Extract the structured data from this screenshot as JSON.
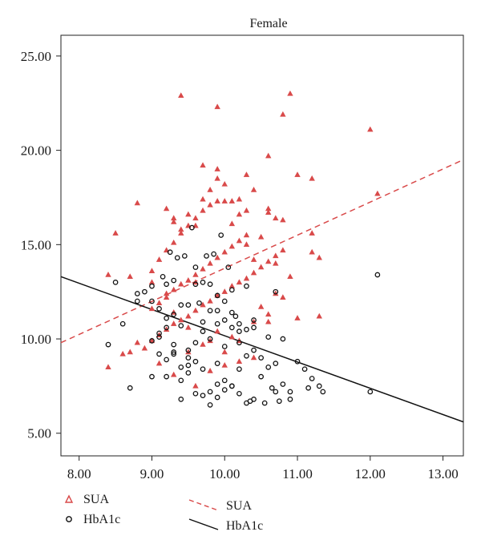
{
  "chart_data": {
    "type": "scatter",
    "title": "Female",
    "xlabel": "",
    "ylabel": "",
    "xlim": [
      7.75,
      13.28
    ],
    "ylim": [
      3.8,
      26.1
    ],
    "xticks": [
      "8.00",
      "9.00",
      "10.00",
      "11.00",
      "12.00",
      "13.00"
    ],
    "yticks": [
      "5.00",
      "10.00",
      "15.00",
      "20.00",
      "25.00"
    ],
    "grid": false,
    "legend_position": "bottom",
    "colors": {
      "sua": "#d94a4a",
      "hba1c": "#111111"
    },
    "fit_lines": [
      {
        "name": "SUA",
        "style": "dashed",
        "x": [
          7.75,
          13.28
        ],
        "y": [
          9.8,
          19.5
        ]
      },
      {
        "name": "HbA1c",
        "style": "solid",
        "x": [
          7.75,
          13.28
        ],
        "y": [
          13.3,
          5.6
        ]
      }
    ],
    "series": [
      {
        "name": "SUA",
        "marker": "triangle",
        "x": [
          8.4,
          8.6,
          8.7,
          8.8,
          8.9,
          9.0,
          9.1,
          9.2,
          9.3,
          9.4,
          9.5,
          9.6,
          9.7,
          9.8,
          9.9,
          10.0,
          10.1,
          10.2,
          10.3,
          10.4,
          10.5,
          10.6,
          10.7,
          10.8,
          10.9,
          11.0,
          11.2,
          11.3,
          9.0,
          9.1,
          9.2,
          9.3,
          9.4,
          9.5,
          9.6,
          9.7,
          9.8,
          9.9,
          10.0,
          10.1,
          10.2,
          10.3,
          10.4,
          10.5,
          10.6,
          10.7,
          10.8,
          9.0,
          9.1,
          9.2,
          9.3,
          9.4,
          9.5,
          9.6,
          9.7,
          9.8,
          9.9,
          10.0,
          10.1,
          10.2,
          10.3,
          10.5,
          10.6,
          10.7,
          8.5,
          8.8,
          9.0,
          9.2,
          9.3,
          9.4,
          9.5,
          9.6,
          9.7,
          9.8,
          9.9,
          10.0,
          10.1,
          10.2,
          10.3,
          10.4,
          10.6,
          10.8,
          11.0,
          11.2,
          9.2,
          9.3,
          9.5,
          9.7,
          9.8,
          9.9,
          10.0,
          10.1,
          10.2,
          10.4,
          10.6,
          9.1,
          9.3,
          9.5,
          9.6,
          9.8,
          10.0,
          10.2,
          10.4,
          9.4,
          9.9,
          10.8,
          10.9,
          12.0,
          12.1,
          11.3,
          11.2,
          10.7,
          9.7,
          9.9,
          10.6,
          9.3,
          8.4,
          8.7,
          9.6,
          10.3
        ],
        "y": [
          8.5,
          9.2,
          9.3,
          9.8,
          9.5,
          9.9,
          10.2,
          10.5,
          10.8,
          11.0,
          11.2,
          11.5,
          11.8,
          12.0,
          12.3,
          12.5,
          12.8,
          13.0,
          13.2,
          13.5,
          13.8,
          14.1,
          14.4,
          14.7,
          13.3,
          11.1,
          14.6,
          14.3,
          11.6,
          11.9,
          12.2,
          12.6,
          12.9,
          13.1,
          13.4,
          13.7,
          14.0,
          14.3,
          14.6,
          14.9,
          15.2,
          15.5,
          14.2,
          11.7,
          10.9,
          12.4,
          12.2,
          13.6,
          14.2,
          14.7,
          15.1,
          15.6,
          16.0,
          16.4,
          16.8,
          17.1,
          17.3,
          17.3,
          16.1,
          16.6,
          15.0,
          15.4,
          16.7,
          16.4,
          15.6,
          17.2,
          13.0,
          16.9,
          16.4,
          15.8,
          16.6,
          16.0,
          17.4,
          17.9,
          18.5,
          18.2,
          17.3,
          17.4,
          18.7,
          17.9,
          16.9,
          16.3,
          18.7,
          18.5,
          12.4,
          11.4,
          10.6,
          9.7,
          9.9,
          10.4,
          9.3,
          10.1,
          9.9,
          10.9,
          11.3,
          8.7,
          8.1,
          9.3,
          7.5,
          8.3,
          8.6,
          8.8,
          9.0,
          22.9,
          22.3,
          21.9,
          23.0,
          21.1,
          17.7,
          11.2,
          15.6,
          14.0,
          19.2,
          19.0,
          19.7,
          16.2,
          13.4,
          13.3,
          13.0,
          16.8
        ]
      },
      {
        "name": "HbA1c",
        "marker": "circle",
        "x": [
          8.4,
          8.5,
          8.6,
          8.7,
          8.8,
          8.9,
          9.0,
          9.0,
          9.1,
          9.1,
          9.2,
          9.2,
          9.3,
          9.3,
          9.4,
          9.4,
          9.5,
          9.5,
          9.6,
          9.6,
          9.7,
          9.7,
          9.8,
          9.8,
          9.9,
          9.9,
          10.0,
          10.0,
          10.1,
          10.1,
          10.2,
          10.2,
          10.3,
          10.3,
          10.4,
          10.4,
          10.5,
          10.6,
          10.7,
          10.8,
          10.9,
          11.0,
          11.1,
          11.2,
          11.3,
          12.0,
          12.1,
          8.8,
          9.0,
          9.2,
          9.4,
          9.6,
          9.8,
          10.0,
          10.2,
          10.4,
          10.6,
          10.8,
          9.1,
          9.3,
          9.5,
          9.7,
          9.9,
          10.1,
          10.3,
          10.5,
          10.7,
          9.0,
          9.2,
          9.4,
          9.6,
          9.8,
          10.0,
          10.2,
          10.4,
          9.1,
          9.3,
          9.5,
          9.7,
          9.9,
          10.1,
          10.3,
          9.2,
          9.4,
          9.6,
          9.8,
          10.0,
          10.2,
          9.3,
          9.5,
          9.7,
          9.9,
          10.1,
          9.55,
          9.75,
          9.95,
          10.05,
          10.15,
          9.25,
          9.85,
          10.7,
          10.75,
          10.9,
          11.15,
          11.35,
          9.15,
          9.35,
          9.45,
          9.65,
          9.9,
          10.35,
          10.55,
          10.65
        ],
        "y": [
          9.7,
          13.0,
          10.8,
          7.4,
          12.0,
          12.5,
          9.9,
          12.8,
          11.6,
          10.3,
          10.6,
          12.9,
          13.1,
          9.3,
          10.7,
          8.5,
          11.8,
          8.2,
          13.8,
          9.8,
          13.0,
          10.9,
          12.9,
          10.0,
          12.3,
          8.7,
          12.0,
          11.0,
          11.4,
          10.6,
          10.8,
          9.8,
          12.8,
          9.1,
          10.6,
          9.4,
          8.0,
          8.5,
          7.2,
          7.6,
          7.2,
          8.8,
          8.4,
          7.9,
          7.5,
          7.2,
          13.4,
          12.4,
          12.0,
          11.1,
          11.8,
          12.9,
          11.5,
          9.6,
          10.4,
          11.0,
          10.1,
          10.0,
          10.1,
          11.3,
          9.4,
          10.4,
          11.5,
          12.6,
          10.5,
          9.0,
          8.7,
          8.0,
          8.9,
          7.8,
          7.1,
          7.2,
          7.3,
          7.1,
          6.8,
          9.2,
          9.7,
          9.0,
          8.4,
          7.6,
          7.5,
          6.6,
          8.0,
          6.8,
          8.8,
          6.5,
          7.8,
          8.4,
          9.2,
          8.6,
          7.0,
          6.9,
          7.5,
          15.9,
          14.4,
          15.5,
          13.8,
          11.2,
          14.6,
          14.5,
          12.5,
          6.7,
          6.8,
          7.4,
          7.2,
          13.3,
          14.3,
          14.4,
          11.9,
          10.8,
          6.7,
          6.6,
          7.4
        ]
      }
    ],
    "legend": {
      "markers": [
        {
          "label": "SUA",
          "marker": "triangle"
        },
        {
          "label": "HbA1c",
          "marker": "circle"
        }
      ],
      "lines": [
        {
          "label": "SUA",
          "style": "dashed"
        },
        {
          "label": "HbA1c",
          "style": "solid"
        }
      ]
    }
  }
}
